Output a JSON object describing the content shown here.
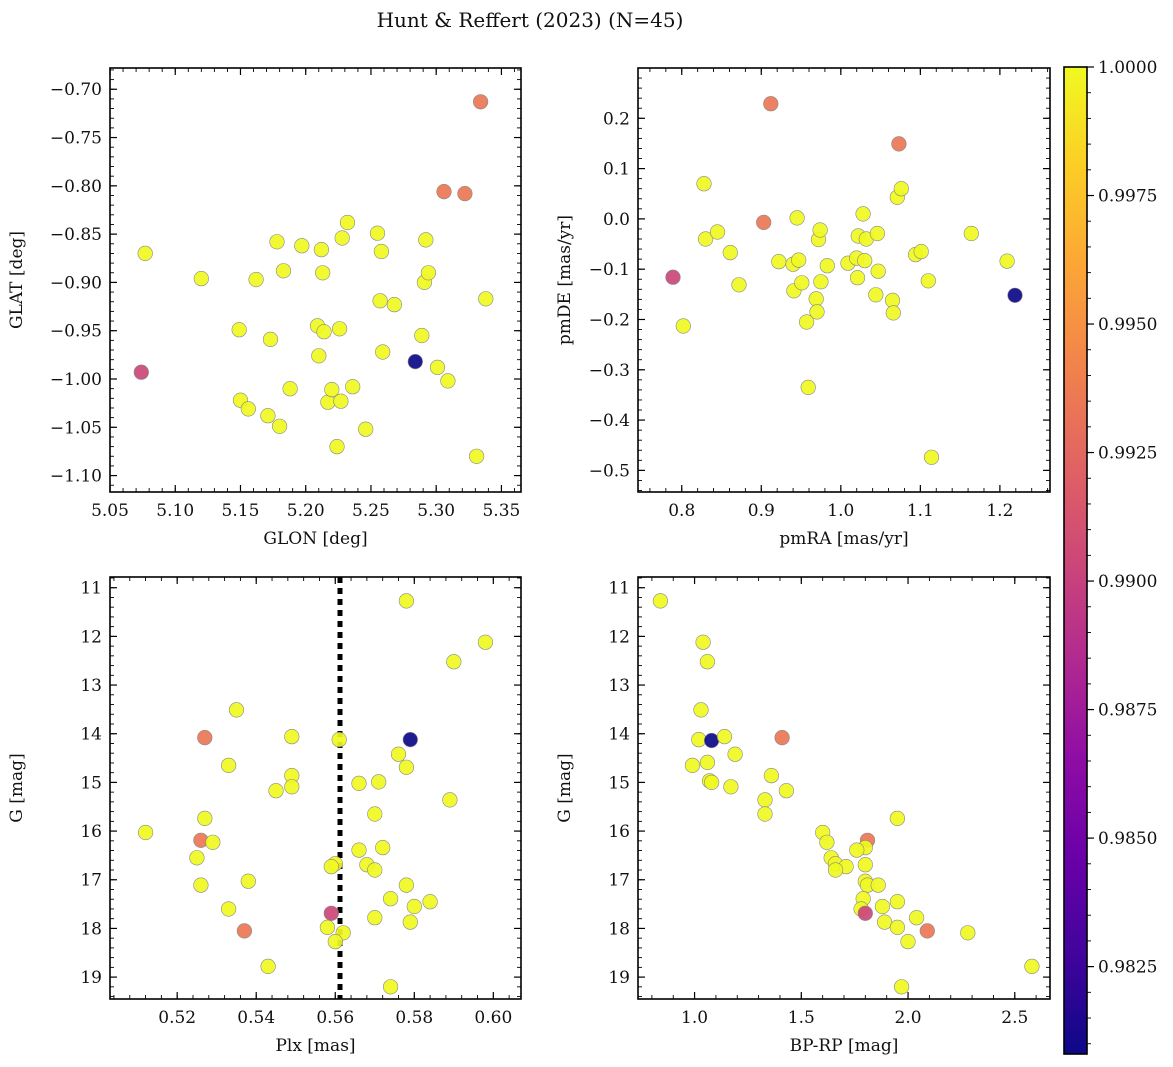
{
  "figure": {
    "title": "Hunt & Reffert (2023) (N=45)"
  },
  "colorbar": {
    "min": 0.9808,
    "max": 1.0,
    "ticks": [
      "0.9825",
      "0.9850",
      "0.9875",
      "0.9900",
      "0.9925",
      "0.9950",
      "0.9975",
      "1.0000"
    ],
    "tick_values": [
      0.9825,
      0.985,
      0.9875,
      0.99,
      0.9925,
      0.995,
      0.9975,
      1.0
    ],
    "colormap": "plasma"
  },
  "chart_data": [
    {
      "type": "scatter",
      "xlabel": "GLON [deg]",
      "ylabel": "GLAT [deg]",
      "xlim": [
        5.05,
        5.365
      ],
      "ylim": [
        -1.117,
        -0.678
      ],
      "xticks": [
        "5.05",
        "5.10",
        "5.15",
        "5.20",
        "5.25",
        "5.30",
        "5.35"
      ],
      "xtick_values": [
        5.05,
        5.1,
        5.15,
        5.2,
        5.25,
        5.3,
        5.35
      ],
      "yticks": [
        "−0.70",
        "−0.75",
        "−0.80",
        "−0.85",
        "−0.90",
        "−0.95",
        "−1.00",
        "−1.05",
        "−1.10"
      ],
      "ytick_values": [
        -0.7,
        -0.75,
        -0.8,
        -0.85,
        -0.9,
        -0.95,
        -1.0,
        -1.05,
        -1.1
      ],
      "x_minor_step": 0.01,
      "y_minor_step": 0.01,
      "points": [
        {
          "x": 5.077,
          "y": -0.87,
          "c": 1.0
        },
        {
          "x": 5.12,
          "y": -0.896,
          "c": 1.0
        },
        {
          "x": 5.149,
          "y": -0.949,
          "c": 1.0
        },
        {
          "x": 5.15,
          "y": -1.022,
          "c": 1.0
        },
        {
          "x": 5.156,
          "y": -1.031,
          "c": 1.0
        },
        {
          "x": 5.162,
          "y": -0.897,
          "c": 1.0
        },
        {
          "x": 5.171,
          "y": -1.038,
          "c": 1.0
        },
        {
          "x": 5.173,
          "y": -0.959,
          "c": 1.0
        },
        {
          "x": 5.178,
          "y": -0.858,
          "c": 1.0
        },
        {
          "x": 5.18,
          "y": -1.049,
          "c": 1.0
        },
        {
          "x": 5.183,
          "y": -0.888,
          "c": 1.0
        },
        {
          "x": 5.188,
          "y": -1.01,
          "c": 1.0
        },
        {
          "x": 5.197,
          "y": -0.862,
          "c": 1.0
        },
        {
          "x": 5.209,
          "y": -0.945,
          "c": 1.0
        },
        {
          "x": 5.21,
          "y": -0.976,
          "c": 1.0
        },
        {
          "x": 5.212,
          "y": -0.866,
          "c": 1.0
        },
        {
          "x": 5.213,
          "y": -0.89,
          "c": 1.0
        },
        {
          "x": 5.214,
          "y": -0.951,
          "c": 1.0
        },
        {
          "x": 5.217,
          "y": -1.024,
          "c": 1.0
        },
        {
          "x": 5.22,
          "y": -1.011,
          "c": 1.0
        },
        {
          "x": 5.224,
          "y": -1.07,
          "c": 1.0
        },
        {
          "x": 5.226,
          "y": -0.948,
          "c": 1.0
        },
        {
          "x": 5.227,
          "y": -1.023,
          "c": 1.0
        },
        {
          "x": 5.228,
          "y": -0.854,
          "c": 1.0
        },
        {
          "x": 5.232,
          "y": -0.838,
          "c": 1.0
        },
        {
          "x": 5.236,
          "y": -1.008,
          "c": 1.0
        },
        {
          "x": 5.246,
          "y": -1.052,
          "c": 1.0
        },
        {
          "x": 5.255,
          "y": -0.849,
          "c": 1.0
        },
        {
          "x": 5.257,
          "y": -0.919,
          "c": 1.0
        },
        {
          "x": 5.258,
          "y": -0.868,
          "c": 1.0
        },
        {
          "x": 5.259,
          "y": -0.972,
          "c": 1.0
        },
        {
          "x": 5.268,
          "y": -0.923,
          "c": 1.0
        },
        {
          "x": 5.284,
          "y": -0.982,
          "c": 0.9808
        },
        {
          "x": 5.289,
          "y": -0.955,
          "c": 1.0
        },
        {
          "x": 5.291,
          "y": -0.9,
          "c": 1.0
        },
        {
          "x": 5.292,
          "y": -0.856,
          "c": 1.0
        },
        {
          "x": 5.294,
          "y": -0.89,
          "c": 1.0
        },
        {
          "x": 5.301,
          "y": -0.988,
          "c": 1.0
        },
        {
          "x": 5.306,
          "y": -0.806,
          "c": 0.9935
        },
        {
          "x": 5.309,
          "y": -1.002,
          "c": 1.0
        },
        {
          "x": 5.322,
          "y": -0.808,
          "c": 0.9935
        },
        {
          "x": 5.331,
          "y": -1.08,
          "c": 1.0
        },
        {
          "x": 5.334,
          "y": -0.713,
          "c": 0.9935
        },
        {
          "x": 5.338,
          "y": -0.917,
          "c": 1.0
        },
        {
          "x": 5.074,
          "y": -0.993,
          "c": 0.9904
        }
      ]
    },
    {
      "type": "scatter",
      "xlabel": "pmRA [mas/yr]",
      "ylabel": "pmDE [mas/yr]",
      "xlim": [
        0.745,
        1.263
      ],
      "ylim": [
        -0.543,
        0.3
      ],
      "xticks": [
        "0.8",
        "0.9",
        "1.0",
        "1.1",
        "1.2"
      ],
      "xtick_values": [
        0.8,
        0.9,
        1.0,
        1.1,
        1.2
      ],
      "yticks": [
        "0.2",
        "0.1",
        "0.0",
        "−0.1",
        "−0.2",
        "−0.3",
        "−0.4",
        "−0.5"
      ],
      "ytick_values": [
        0.2,
        0.1,
        0.0,
        -0.1,
        -0.2,
        -0.3,
        -0.4,
        -0.5
      ],
      "x_minor_step": 0.02,
      "y_minor_step": 0.02,
      "points": [
        {
          "x": 0.789,
          "y": -0.116,
          "c": 0.9904
        },
        {
          "x": 0.802,
          "y": -0.213,
          "c": 1.0
        },
        {
          "x": 0.828,
          "y": 0.07,
          "c": 1.0
        },
        {
          "x": 0.83,
          "y": -0.04,
          "c": 1.0
        },
        {
          "x": 0.845,
          "y": -0.026,
          "c": 1.0
        },
        {
          "x": 0.861,
          "y": -0.067,
          "c": 1.0
        },
        {
          "x": 0.872,
          "y": -0.131,
          "c": 1.0
        },
        {
          "x": 0.903,
          "y": -0.007,
          "c": 0.9935
        },
        {
          "x": 0.912,
          "y": 0.229,
          "c": 0.9935
        },
        {
          "x": 0.922,
          "y": -0.085,
          "c": 1.0
        },
        {
          "x": 0.94,
          "y": -0.09,
          "c": 1.0
        },
        {
          "x": 0.941,
          "y": -0.143,
          "c": 1.0
        },
        {
          "x": 0.945,
          "y": 0.002,
          "c": 1.0
        },
        {
          "x": 0.947,
          "y": -0.082,
          "c": 1.0
        },
        {
          "x": 0.951,
          "y": -0.127,
          "c": 1.0
        },
        {
          "x": 0.957,
          "y": -0.205,
          "c": 1.0
        },
        {
          "x": 0.959,
          "y": -0.335,
          "c": 1.0
        },
        {
          "x": 0.969,
          "y": -0.159,
          "c": 1.0
        },
        {
          "x": 0.97,
          "y": -0.185,
          "c": 1.0
        },
        {
          "x": 0.972,
          "y": -0.041,
          "c": 1.0
        },
        {
          "x": 0.974,
          "y": -0.022,
          "c": 1.0
        },
        {
          "x": 0.975,
          "y": -0.125,
          "c": 1.0
        },
        {
          "x": 0.983,
          "y": -0.093,
          "c": 1.0
        },
        {
          "x": 1.009,
          "y": -0.088,
          "c": 1.0
        },
        {
          "x": 1.02,
          "y": -0.078,
          "c": 1.0
        },
        {
          "x": 1.021,
          "y": -0.117,
          "c": 1.0
        },
        {
          "x": 1.022,
          "y": -0.034,
          "c": 1.0
        },
        {
          "x": 1.028,
          "y": 0.01,
          "c": 1.0
        },
        {
          "x": 1.03,
          "y": -0.083,
          "c": 1.0
        },
        {
          "x": 1.032,
          "y": -0.04,
          "c": 1.0
        },
        {
          "x": 1.044,
          "y": -0.151,
          "c": 1.0
        },
        {
          "x": 1.046,
          "y": -0.029,
          "c": 1.0
        },
        {
          "x": 1.047,
          "y": -0.104,
          "c": 1.0
        },
        {
          "x": 1.065,
          "y": -0.162,
          "c": 1.0
        },
        {
          "x": 1.066,
          "y": -0.187,
          "c": 1.0
        },
        {
          "x": 1.071,
          "y": 0.043,
          "c": 1.0
        },
        {
          "x": 1.073,
          "y": 0.149,
          "c": 0.9935
        },
        {
          "x": 1.076,
          "y": 0.06,
          "c": 1.0
        },
        {
          "x": 1.094,
          "y": -0.071,
          "c": 1.0
        },
        {
          "x": 1.101,
          "y": -0.065,
          "c": 1.0
        },
        {
          "x": 1.11,
          "y": -0.123,
          "c": 1.0
        },
        {
          "x": 1.114,
          "y": -0.474,
          "c": 1.0
        },
        {
          "x": 1.164,
          "y": -0.029,
          "c": 1.0
        },
        {
          "x": 1.209,
          "y": -0.084,
          "c": 1.0
        },
        {
          "x": 1.219,
          "y": -0.152,
          "c": 0.9808
        }
      ]
    },
    {
      "type": "scatter",
      "xlabel": "Plx [mas]",
      "ylabel": "G [mag]",
      "xlim": [
        0.503,
        0.607
      ],
      "ylim": [
        19.45,
        10.78
      ],
      "y_inverted": true,
      "vline": {
        "x": 0.5612,
        "style": "dotted"
      },
      "xticks": [
        "0.52",
        "0.54",
        "0.56",
        "0.58",
        "0.60"
      ],
      "xtick_values": [
        0.52,
        0.54,
        0.56,
        0.58,
        0.6
      ],
      "yticks": [
        "11",
        "12",
        "13",
        "14",
        "15",
        "16",
        "17",
        "18",
        "19"
      ],
      "ytick_values": [
        11,
        12,
        13,
        14,
        15,
        16,
        17,
        18,
        19
      ],
      "x_minor_step": 0.004,
      "y_minor_step": 0.2,
      "points": [
        {
          "x": 0.578,
          "y": 11.27,
          "c": 1.0
        },
        {
          "x": 0.598,
          "y": 12.12,
          "c": 1.0
        },
        {
          "x": 0.59,
          "y": 12.52,
          "c": 1.0
        },
        {
          "x": 0.535,
          "y": 13.51,
          "c": 1.0
        },
        {
          "x": 0.527,
          "y": 14.08,
          "c": 0.9935
        },
        {
          "x": 0.549,
          "y": 14.06,
          "c": 1.0
        },
        {
          "x": 0.561,
          "y": 14.12,
          "c": 1.0
        },
        {
          "x": 0.579,
          "y": 14.12,
          "c": 0.9808
        },
        {
          "x": 0.576,
          "y": 14.42,
          "c": 1.0
        },
        {
          "x": 0.533,
          "y": 14.65,
          "c": 1.0
        },
        {
          "x": 0.578,
          "y": 14.69,
          "c": 1.0
        },
        {
          "x": 0.549,
          "y": 14.86,
          "c": 1.0
        },
        {
          "x": 0.571,
          "y": 14.99,
          "c": 1.0
        },
        {
          "x": 0.566,
          "y": 15.02,
          "c": 1.0
        },
        {
          "x": 0.549,
          "y": 15.09,
          "c": 1.0
        },
        {
          "x": 0.545,
          "y": 15.17,
          "c": 1.0
        },
        {
          "x": 0.589,
          "y": 15.36,
          "c": 1.0
        },
        {
          "x": 0.57,
          "y": 15.65,
          "c": 1.0
        },
        {
          "x": 0.527,
          "y": 15.74,
          "c": 1.0
        },
        {
          "x": 0.512,
          "y": 16.03,
          "c": 1.0
        },
        {
          "x": 0.526,
          "y": 16.19,
          "c": 0.9935
        },
        {
          "x": 0.529,
          "y": 16.23,
          "c": 1.0
        },
        {
          "x": 0.572,
          "y": 16.34,
          "c": 1.0
        },
        {
          "x": 0.566,
          "y": 16.39,
          "c": 1.0
        },
        {
          "x": 0.525,
          "y": 16.55,
          "c": 1.0
        },
        {
          "x": 0.56,
          "y": 16.67,
          "c": 1.0
        },
        {
          "x": 0.568,
          "y": 16.69,
          "c": 1.0
        },
        {
          "x": 0.559,
          "y": 16.73,
          "c": 1.0
        },
        {
          "x": 0.57,
          "y": 16.8,
          "c": 1.0
        },
        {
          "x": 0.538,
          "y": 17.03,
          "c": 1.0
        },
        {
          "x": 0.526,
          "y": 17.11,
          "c": 1.0
        },
        {
          "x": 0.578,
          "y": 17.11,
          "c": 1.0
        },
        {
          "x": 0.574,
          "y": 17.39,
          "c": 1.0
        },
        {
          "x": 0.584,
          "y": 17.45,
          "c": 1.0
        },
        {
          "x": 0.58,
          "y": 17.55,
          "c": 1.0
        },
        {
          "x": 0.533,
          "y": 17.6,
          "c": 1.0
        },
        {
          "x": 0.559,
          "y": 17.69,
          "c": 0.9904
        },
        {
          "x": 0.57,
          "y": 17.78,
          "c": 1.0
        },
        {
          "x": 0.579,
          "y": 17.87,
          "c": 1.0
        },
        {
          "x": 0.558,
          "y": 17.98,
          "c": 1.0
        },
        {
          "x": 0.537,
          "y": 18.05,
          "c": 0.9935
        },
        {
          "x": 0.562,
          "y": 18.09,
          "c": 1.0
        },
        {
          "x": 0.56,
          "y": 18.27,
          "c": 1.0
        },
        {
          "x": 0.543,
          "y": 18.78,
          "c": 1.0
        },
        {
          "x": 0.574,
          "y": 19.2,
          "c": 1.0
        }
      ]
    },
    {
      "type": "scatter",
      "xlabel": "BP-RP [mag]",
      "ylabel": "G [mag]",
      "xlim": [
        0.735,
        2.665
      ],
      "ylim": [
        19.45,
        10.78
      ],
      "y_inverted": true,
      "xticks": [
        "1.0",
        "1.5",
        "2.0",
        "2.5"
      ],
      "xtick_values": [
        1.0,
        1.5,
        2.0,
        2.5
      ],
      "yticks": [
        "11",
        "12",
        "13",
        "14",
        "15",
        "16",
        "17",
        "18",
        "19"
      ],
      "ytick_values": [
        11,
        12,
        13,
        14,
        15,
        16,
        17,
        18,
        19
      ],
      "x_minor_step": 0.1,
      "y_minor_step": 0.2,
      "points": [
        {
          "x": 0.84,
          "y": 11.27,
          "c": 1.0
        },
        {
          "x": 1.04,
          "y": 12.12,
          "c": 1.0
        },
        {
          "x": 1.06,
          "y": 12.52,
          "c": 1.0
        },
        {
          "x": 1.03,
          "y": 13.51,
          "c": 1.0
        },
        {
          "x": 1.02,
          "y": 14.12,
          "c": 1.0
        },
        {
          "x": 1.08,
          "y": 14.14,
          "c": 0.9808
        },
        {
          "x": 1.14,
          "y": 14.06,
          "c": 1.0
        },
        {
          "x": 1.41,
          "y": 14.08,
          "c": 0.9935
        },
        {
          "x": 1.19,
          "y": 14.42,
          "c": 1.0
        },
        {
          "x": 1.06,
          "y": 14.59,
          "c": 1.0
        },
        {
          "x": 0.99,
          "y": 14.65,
          "c": 1.0
        },
        {
          "x": 1.36,
          "y": 14.86,
          "c": 1.0
        },
        {
          "x": 1.07,
          "y": 14.97,
          "c": 1.0
        },
        {
          "x": 1.08,
          "y": 15.0,
          "c": 1.0
        },
        {
          "x": 1.17,
          "y": 15.09,
          "c": 1.0
        },
        {
          "x": 1.43,
          "y": 15.17,
          "c": 1.0
        },
        {
          "x": 1.33,
          "y": 15.36,
          "c": 1.0
        },
        {
          "x": 1.33,
          "y": 15.65,
          "c": 1.0
        },
        {
          "x": 1.95,
          "y": 15.74,
          "c": 1.0
        },
        {
          "x": 1.6,
          "y": 16.03,
          "c": 1.0
        },
        {
          "x": 1.81,
          "y": 16.19,
          "c": 0.9935
        },
        {
          "x": 1.62,
          "y": 16.23,
          "c": 1.0
        },
        {
          "x": 1.8,
          "y": 16.34,
          "c": 1.0
        },
        {
          "x": 1.76,
          "y": 16.39,
          "c": 1.0
        },
        {
          "x": 1.64,
          "y": 16.55,
          "c": 1.0
        },
        {
          "x": 1.66,
          "y": 16.67,
          "c": 1.0
        },
        {
          "x": 1.8,
          "y": 16.69,
          "c": 1.0
        },
        {
          "x": 1.71,
          "y": 16.73,
          "c": 1.0
        },
        {
          "x": 1.66,
          "y": 16.8,
          "c": 1.0
        },
        {
          "x": 1.8,
          "y": 17.03,
          "c": 1.0
        },
        {
          "x": 1.81,
          "y": 17.11,
          "c": 1.0
        },
        {
          "x": 1.86,
          "y": 17.11,
          "c": 1.0
        },
        {
          "x": 1.79,
          "y": 17.39,
          "c": 1.0
        },
        {
          "x": 1.95,
          "y": 17.45,
          "c": 1.0
        },
        {
          "x": 1.88,
          "y": 17.55,
          "c": 1.0
        },
        {
          "x": 1.78,
          "y": 17.6,
          "c": 1.0
        },
        {
          "x": 1.8,
          "y": 17.69,
          "c": 0.9904
        },
        {
          "x": 2.04,
          "y": 17.78,
          "c": 1.0
        },
        {
          "x": 1.89,
          "y": 17.87,
          "c": 1.0
        },
        {
          "x": 1.95,
          "y": 17.98,
          "c": 1.0
        },
        {
          "x": 2.09,
          "y": 18.05,
          "c": 0.9935
        },
        {
          "x": 2.28,
          "y": 18.09,
          "c": 1.0
        },
        {
          "x": 2.0,
          "y": 18.27,
          "c": 1.0
        },
        {
          "x": 2.58,
          "y": 18.78,
          "c": 1.0
        },
        {
          "x": 1.97,
          "y": 19.2,
          "c": 1.0
        }
      ]
    }
  ]
}
